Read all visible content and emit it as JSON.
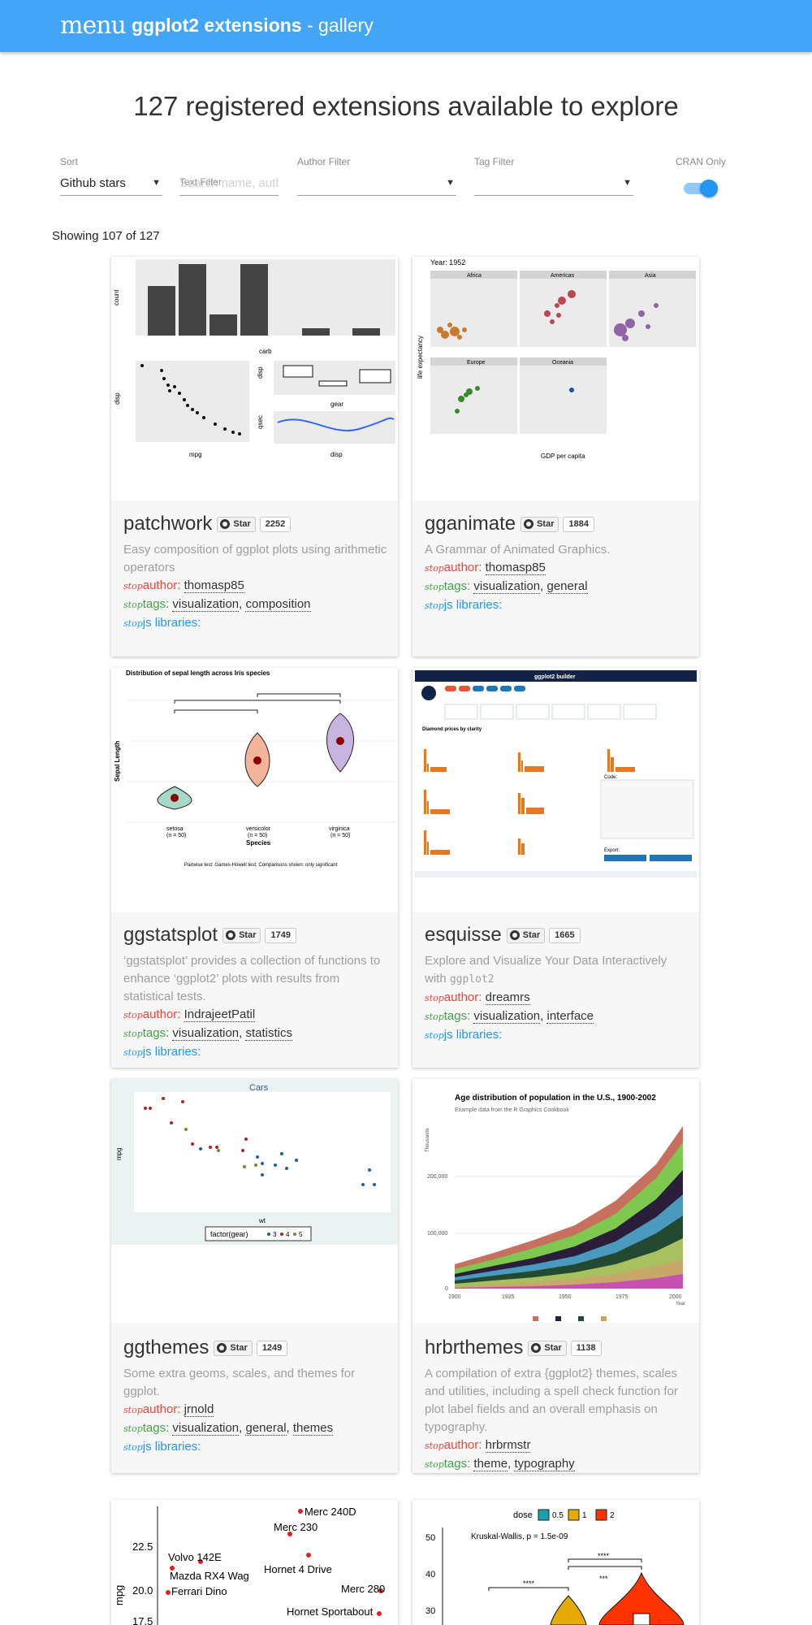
{
  "header": {
    "menu_glyph": "menu",
    "title_bold": "ggplot2 extensions",
    "title_rest": " - gallery"
  },
  "headline": "127 registered extensions available to explore",
  "filters": {
    "sort_label": "Sort",
    "sort_value": "Github stars",
    "text_label": "Text Filter",
    "text_placeholder": "Search name, auth",
    "author_label": "Author Filter",
    "author_value": "",
    "tag_label": "Tag Filter",
    "tag_value": "",
    "cran_label": "CRAN Only",
    "cran_on": true
  },
  "showing": "Showing 107 of 127",
  "labels": {
    "star": "Star",
    "author": "author: ",
    "tags": "tags: ",
    "js": "js libraries: ",
    "stop_glyph": "stop"
  },
  "cards": [
    {
      "name": "patchwork",
      "stars": "2252",
      "desc": "Easy composition of ggplot plots using arithmetic operators",
      "author": "thomasp85",
      "tags": [
        "visualization",
        "composition"
      ]
    },
    {
      "name": "gganimate",
      "stars": "1884",
      "desc": "A Grammar of Animated Graphics.",
      "author": "thomasp85",
      "tags": [
        "visualization",
        "general"
      ]
    },
    {
      "name": "ggstatsplot",
      "stars": "1749",
      "desc": "‘ggstatsplot’ provides a collection of functions to enhance ‘ggplot2’ plots with results from statistical tests.",
      "author": "IndrajeetPatil",
      "tags": [
        "visualization",
        "statistics"
      ]
    },
    {
      "name": "esquisse",
      "stars": "1665",
      "desc": "Explore and Visualize Your Data Interactively with ",
      "desc_code": "ggplot2",
      "author": "dreamrs",
      "tags": [
        "visualization",
        "interface"
      ]
    },
    {
      "name": "ggthemes",
      "stars": "1249",
      "desc": "Some extra geoms, scales, and themes for ggplot.",
      "author": "jrnold",
      "tags": [
        "visualization",
        "general",
        "themes"
      ]
    },
    {
      "name": "hrbrthemes",
      "stars": "1138",
      "desc": "A compilation of extra {ggplot2} themes, scales and utilities, including a spell check function for plot label fields and an overall emphasis on typography.",
      "author": "hrbrmstr",
      "tags": [
        "theme",
        "typography"
      ]
    }
  ],
  "thumbs": {
    "patchwork": {
      "xlabel_carb": "carb",
      "ylabel_count": "count",
      "xlabel_mpg": "mpg",
      "ylabel_disp": "disp",
      "xlabel_gear": "gear",
      "xlabel_disp": "disp",
      "ylabel_qsec": "qsec"
    },
    "gganimate": {
      "year": "Year: 1952",
      "panels": [
        "Africa",
        "Americas",
        "Asia",
        "Europe",
        "Oceania"
      ],
      "xlabel": "GDP per capita",
      "ylabel": "life expectancy"
    },
    "ggstatsplot": {
      "title": "Distribution of sepal length across Iris species",
      "xlabel": "Species",
      "ylabel": "Sepal Length",
      "groups": [
        "setosa",
        "versicolor",
        "virginica"
      ],
      "n": "(n = 50)",
      "footer": "Pairwise test: Games-Howell test; Comparisons shown: only significant"
    },
    "esquisse": {
      "header": "ggplot2 builder",
      "chart_title": "Diamond prices by clarity",
      "code_label": "Code:",
      "export": "Export:"
    },
    "ggthemes": {
      "title": "Cars",
      "xlabel": "wt",
      "ylabel": "mpg",
      "legend_title": "factor(gear)",
      "legend_items": [
        "3",
        "4",
        "5"
      ]
    },
    "hrbrthemes": {
      "title": "Age distribution of population in the U.S., 1900-2002",
      "subtitle": "Example data from the R Graphics Cookbook",
      "ylabel": "Thousands",
      "xlabel": "Year",
      "yticks": [
        "200,000",
        "100,000",
        "0"
      ],
      "xticks": [
        "1900",
        "1925",
        "1950",
        "1975",
        "2000"
      ]
    },
    "bottom_left": {
      "labels": [
        "Merc 240D",
        "Merc 230",
        "Volvo 142E",
        "Hornet 4 Drive",
        "Mazda RX4 Wag",
        "Ferrari Dino",
        "Merc 280",
        "Hornet Sportabout"
      ],
      "yticks": [
        "22.5",
        "20.0",
        "17.5"
      ],
      "ylabel": "mpg"
    },
    "bottom_right": {
      "legend_title": "dose",
      "legend_items": [
        "0.5",
        "1",
        "2"
      ],
      "stat": "Kruskal-Wallis, p = 1.5e-09",
      "yticks": [
        "50",
        "40",
        "30"
      ],
      "sig1": "****",
      "sig2": "****",
      "sig3": "***"
    }
  },
  "colors": {
    "topbar": "#42a5f5",
    "author": "#f44336",
    "tags": "#43a047",
    "js": "#2196f3"
  }
}
